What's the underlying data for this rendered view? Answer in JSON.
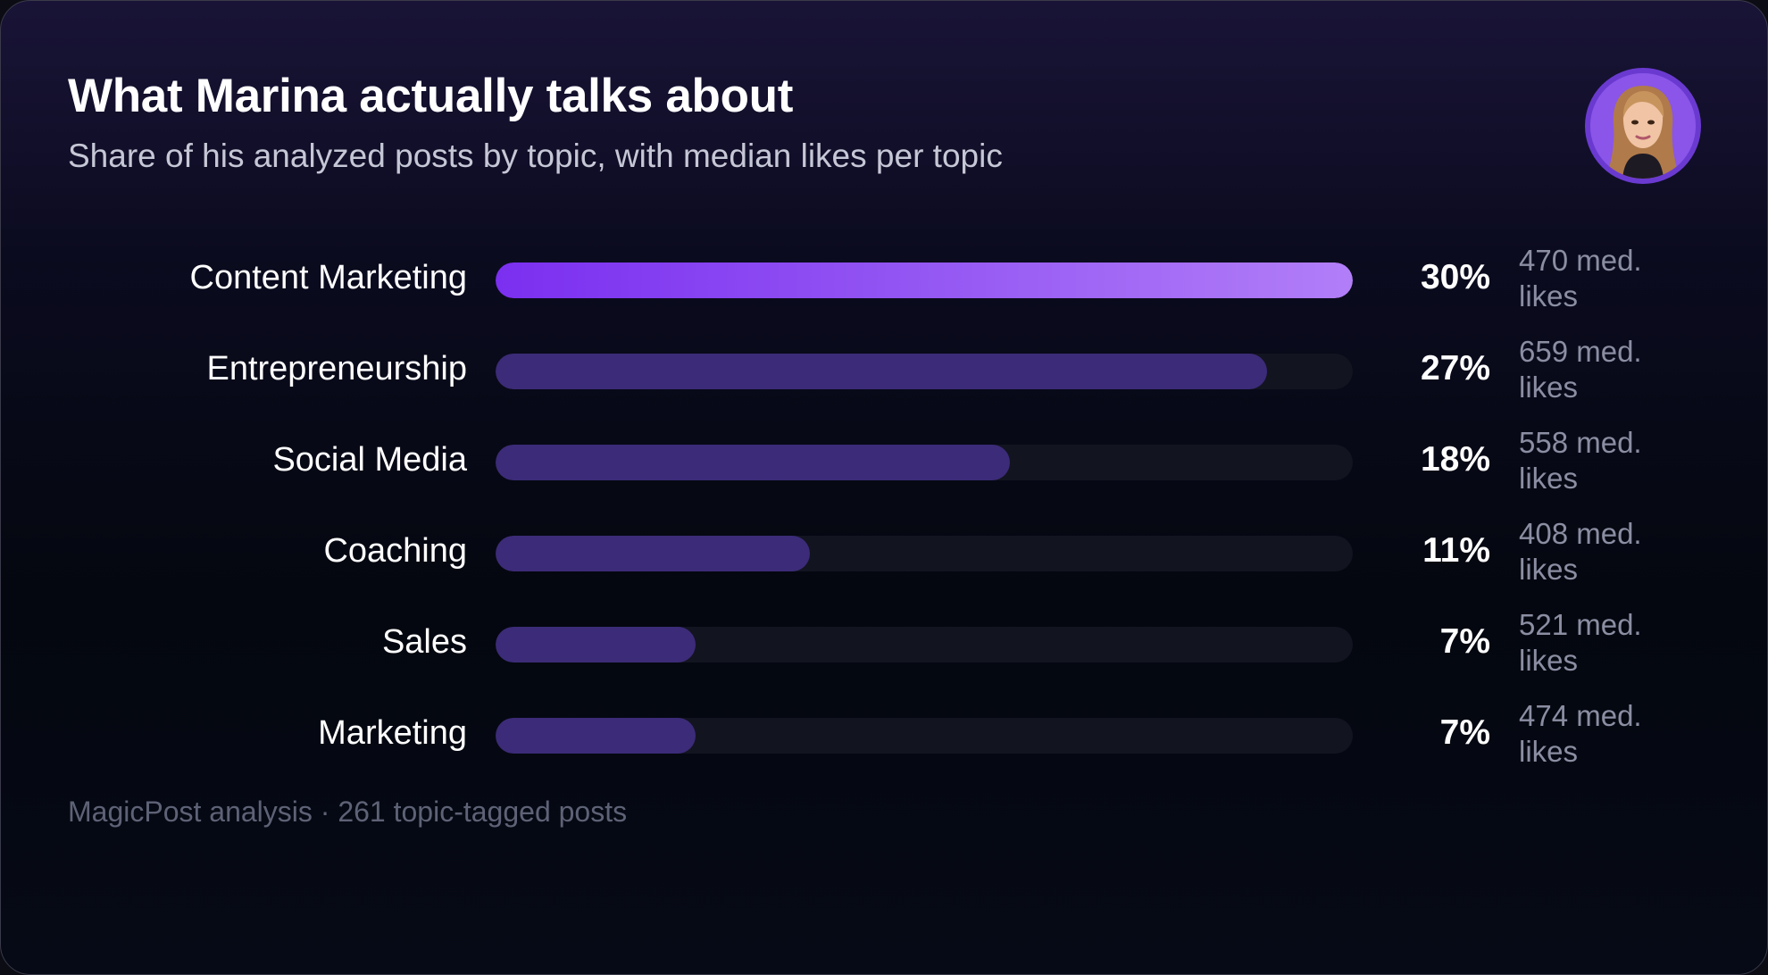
{
  "header": {
    "title": "What Marina actually talks about",
    "subtitle": "Share of his analyzed posts by topic, with median likes per topic"
  },
  "avatar": {
    "icon": "profile-photo",
    "ring_color": "#6a3ad0"
  },
  "chart_data": {
    "type": "bar",
    "orientation": "horizontal",
    "title": "What Marina actually talks about",
    "subtitle": "Share of his analyzed posts by topic, with median likes per topic",
    "categories": [
      "Content Marketing",
      "Entrepreneurship",
      "Social Media",
      "Coaching",
      "Sales",
      "Marketing"
    ],
    "values": [
      30,
      27,
      18,
      11,
      7,
      7
    ],
    "value_labels": [
      "30%",
      "27%",
      "18%",
      "11%",
      "7%",
      "7%"
    ],
    "median_likes": [
      470,
      659,
      558,
      408,
      521,
      474
    ],
    "median_likes_labels": [
      "470 med. likes",
      "659 med. likes",
      "558 med. likes",
      "408 med. likes",
      "521 med. likes",
      "474 med. likes"
    ],
    "xlim": [
      0,
      30
    ],
    "grid": false,
    "colors": {
      "top_bar_start": "#7b2ff0",
      "top_bar_end": "#b27ef8",
      "bar": "#3c2b78",
      "track": "#121420"
    }
  },
  "footer": {
    "text": "MagicPost analysis · 261 topic-tagged posts"
  }
}
